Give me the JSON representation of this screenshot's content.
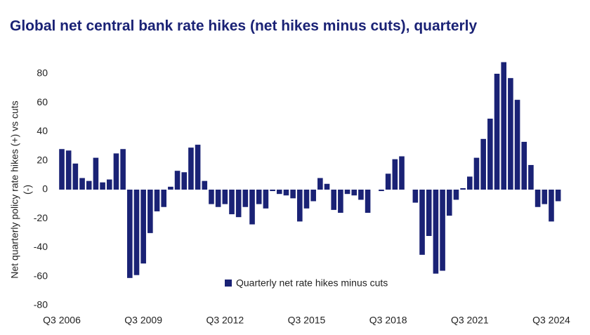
{
  "chart_data": {
    "type": "bar",
    "title": "Global net central bank rate hikes (net hikes minus cuts), quarterly",
    "y_label": [
      "Net quarterly policy rate hikes (+) vs cuts",
      "(-)"
    ],
    "categories": [
      "Q3 2006",
      null,
      null,
      null,
      null,
      null,
      null,
      null,
      null,
      null,
      null,
      null,
      "Q3 2009",
      null,
      null,
      null,
      null,
      null,
      null,
      null,
      null,
      null,
      null,
      null,
      "Q3 2012",
      null,
      null,
      null,
      null,
      null,
      null,
      null,
      null,
      null,
      null,
      null,
      "Q3 2015",
      null,
      null,
      null,
      null,
      null,
      null,
      null,
      null,
      null,
      null,
      null,
      "Q3 2018",
      null,
      null,
      null,
      null,
      null,
      null,
      null,
      null,
      null,
      null,
      null,
      "Q3 2021",
      null,
      null,
      null,
      null,
      null,
      null,
      null,
      null,
      null,
      null,
      null,
      "Q3 2024",
      null
    ],
    "series": [
      {
        "name": "Quarterly net rate hikes minus cuts",
        "color": "#1a2275",
        "values": [
          28,
          27,
          18,
          8,
          6,
          22,
          5,
          7,
          25,
          28,
          -61,
          -59,
          -51,
          -30,
          -15,
          -12,
          2,
          13,
          12,
          29,
          31,
          6,
          -10,
          -12,
          -10,
          -17,
          -19,
          -12,
          -24,
          -10,
          -13,
          -1,
          -3,
          -4,
          -6,
          -22,
          -13,
          -8,
          8,
          4,
          -14,
          -16,
          -3,
          -4,
          -7,
          -16,
          0,
          -1,
          11,
          21,
          23,
          0,
          -9,
          -45,
          -32,
          -58,
          -56,
          -18,
          -7,
          1,
          9,
          22,
          35,
          49,
          80,
          88,
          77,
          62,
          33,
          17,
          -12,
          -10,
          -22,
          -8
        ]
      }
    ],
    "ylim": [
      -80,
      88
    ],
    "yticks": [
      80,
      60,
      40,
      20,
      0,
      -20,
      -40,
      -60,
      -80
    ],
    "grid": false
  }
}
